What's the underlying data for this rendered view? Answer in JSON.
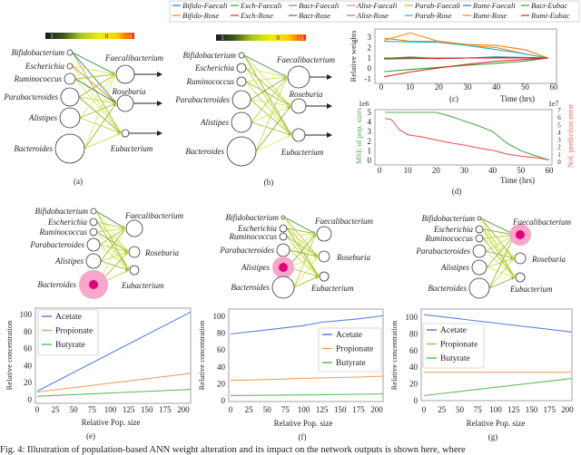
{
  "legend_top": {
    "entries": [
      {
        "label": "Bifido-Faecali",
        "color": "#1f77b4"
      },
      {
        "label": "Bifido-Rose",
        "color": "#ff7f0e"
      },
      {
        "label": "Esch-Faecali",
        "color": "#2ca02c"
      },
      {
        "label": "Esch-Rose",
        "color": "#d62728"
      },
      {
        "label": "Bact-Faecali",
        "color": "#9467bd"
      },
      {
        "label": "Bact-Rose",
        "color": "#8c564b"
      },
      {
        "label": "Alist-Faecali",
        "color": "#e377c2"
      },
      {
        "label": "Alist-Rose",
        "color": "#7f7f7f"
      },
      {
        "label": "Parab-Faecali",
        "color": "#bcbd22"
      },
      {
        "label": "Parab-Rose",
        "color": "#17becf"
      },
      {
        "label": "Rumi-Faecali",
        "color": "#1f77b4"
      },
      {
        "label": "Rumi-Rose",
        "color": "#ff7f0e"
      },
      {
        "label": "Bact-Eubac",
        "color": "#2ca02c"
      },
      {
        "label": "Rumi-Eubac",
        "color": "#d62728"
      }
    ]
  },
  "colorbar": {
    "tick_labels": [
      "1",
      "0",
      "-1"
    ],
    "colors": [
      "#1a1a1a",
      "#3b5a1c",
      "#a8c81e",
      "#e8f000",
      "#ffd000",
      "#ff2a00"
    ]
  },
  "highlight_colors": {
    "core": "#e0007a",
    "halo": "#f8a6c9"
  },
  "networks": [
    {
      "caption": "(a)",
      "inputs": [
        "Bifidobacterium",
        "Escherichia",
        "Ruminococcus",
        "Parabacteroides",
        "Alistipes",
        "Bacteroides"
      ],
      "outputs": [
        "Faecalibacterium",
        "Roseburia",
        "Eubacterium"
      ],
      "has_colorbar": true,
      "output_arrows": true,
      "highlight": null
    },
    {
      "caption": "(b)",
      "inputs": [
        "Bifidobacterium",
        "Escherichia",
        "Ruminococcus",
        "Parabacteroides",
        "Alistipes",
        "Bacteroides"
      ],
      "outputs": [
        "Faecalibacterium",
        "Roseburia",
        "Eubacterium"
      ],
      "has_colorbar": true,
      "output_arrows": true,
      "highlight": null
    },
    {
      "inputs": [
        "Bifidobacterium",
        "Escherichia",
        "Ruminococcus",
        "Parabacteroides",
        "Alistipes",
        "Bacteroides"
      ],
      "outputs": [
        "Faecalibacterium",
        "Roseburia",
        "Eubacterium"
      ],
      "has_colorbar": false,
      "output_arrows": false,
      "highlight": {
        "layer": "input",
        "node": "Bacteroides"
      }
    },
    {
      "inputs": [
        "Bifidobacterium",
        "Escherichia",
        "Ruminococcus",
        "Parabacteroides",
        "Alistipes",
        "Bacteroides"
      ],
      "outputs": [
        "Faecalibacterium",
        "Roseburia",
        "Eubacterium"
      ],
      "has_colorbar": false,
      "output_arrows": false,
      "highlight": {
        "layer": "input",
        "node": "Alistipes"
      }
    },
    {
      "inputs": [
        "Bifidobacterium",
        "Escherichia",
        "Ruminococcus",
        "Parabacteroides",
        "Alistipes",
        "Bacteroides"
      ],
      "outputs": [
        "Faecalibacterium",
        "Roseburia",
        "Eubacterium"
      ],
      "has_colorbar": false,
      "output_arrows": false,
      "highlight": {
        "layer": "output",
        "node": "Faecalibacterium"
      }
    }
  ],
  "chart_data": [
    {
      "type": "line",
      "caption": "(c)",
      "xlabel": "Time (hrs)",
      "ylabel": "Relative weights",
      "xlim": [
        0,
        60
      ],
      "ylim": [
        -1,
        3
      ],
      "xticks": [
        0,
        10,
        20,
        30,
        40,
        50,
        60
      ],
      "yticks": [
        -1,
        0,
        1,
        2,
        3
      ],
      "grid": false,
      "legend": "top (shared legend above panel)",
      "x": [
        1,
        10,
        20,
        30,
        40,
        50,
        58
      ],
      "series": [
        {
          "name": "Bifido-Faecali",
          "values": [
            1.0,
            1.0,
            1.0,
            1.0,
            1.0,
            1.0,
            1.0
          ]
        },
        {
          "name": "Bifido-Rose",
          "values": [
            2.9,
            2.6,
            2.6,
            2.2,
            2.0,
            1.4,
            1.0
          ]
        },
        {
          "name": "Esch-Faecali",
          "values": [
            -0.3,
            -0.1,
            0.1,
            0.3,
            0.5,
            0.7,
            1.0
          ]
        },
        {
          "name": "Esch-Rose",
          "values": [
            -0.8,
            -0.35,
            0.05,
            0.4,
            0.7,
            0.85,
            1.0
          ]
        },
        {
          "name": "Bact-Faecali",
          "values": [
            0.95,
            1.1,
            0.95,
            1.0,
            1.05,
            1.0,
            1.0
          ]
        },
        {
          "name": "Bact-Rose",
          "values": [
            1.0,
            1.0,
            1.0,
            1.0,
            1.0,
            1.0,
            1.0
          ]
        },
        {
          "name": "Alist-Faecali",
          "values": [
            1.0,
            1.0,
            1.0,
            1.0,
            1.0,
            1.05,
            1.0
          ]
        },
        {
          "name": "Alist-Rose",
          "values": [
            1.0,
            1.0,
            1.0,
            1.0,
            1.0,
            1.0,
            1.0
          ]
        },
        {
          "name": "Parab-Faecali",
          "values": [
            0.95,
            1.0,
            1.0,
            1.0,
            1.0,
            1.0,
            1.0
          ]
        },
        {
          "name": "Parab-Rose",
          "values": [
            2.6,
            2.55,
            2.5,
            2.2,
            1.8,
            1.4,
            1.0
          ]
        },
        {
          "name": "Rumi-Faecali",
          "values": [
            0.9,
            0.95,
            0.95,
            1.0,
            1.1,
            1.05,
            1.0
          ]
        },
        {
          "name": "Rumi-Rose",
          "values": [
            2.7,
            3.4,
            2.6,
            2.3,
            2.2,
            1.8,
            1.0
          ]
        },
        {
          "name": "Bact-Eubac",
          "values": [
            0.95,
            0.95,
            1.0,
            1.0,
            1.0,
            1.0,
            1.0
          ]
        },
        {
          "name": "Rumi-Eubac",
          "values": [
            1.0,
            1.0,
            0.95,
            1.0,
            1.0,
            1.0,
            1.0
          ]
        }
      ]
    },
    {
      "type": "line",
      "caption": "(d)",
      "xlabel": "Time (hrs)",
      "ylabel": "MSE of pop. sizes",
      "ylabel_right": "Nol. prediction error",
      "y_offset_label": "1e6",
      "y_right_offset_label": "1e7",
      "xlim": [
        0,
        60
      ],
      "ylim": [
        0,
        5
      ],
      "ylim_right": [
        0,
        7
      ],
      "xticks": [
        0,
        10,
        20,
        30,
        40,
        50,
        60
      ],
      "yticks": [
        0,
        1,
        2,
        3,
        4,
        5
      ],
      "yticks_right": [
        0,
        1,
        2,
        3,
        4,
        5,
        6,
        7
      ],
      "colors": {
        "left": "#4caf50",
        "right": "#e8605a"
      },
      "series": [
        {
          "axis": "left",
          "x": [
            2,
            20,
            25,
            30,
            35,
            40,
            45,
            50,
            55,
            60
          ],
          "values": [
            5,
            5,
            4.6,
            4.1,
            3.6,
            3.0,
            1.8,
            1.0,
            0.5,
            0.05
          ]
        },
        {
          "axis": "right",
          "x": [
            2,
            4,
            5,
            7,
            10,
            15,
            20,
            25,
            30,
            35,
            40,
            45,
            50,
            55,
            60
          ],
          "values": [
            5.8,
            5.7,
            5.3,
            4.3,
            3.6,
            3.3,
            2.9,
            2.5,
            2.2,
            1.8,
            1.5,
            1.0,
            0.7,
            0.5,
            0.2
          ]
        }
      ]
    },
    {
      "type": "line",
      "caption": "(e)",
      "xlabel": "Relative Pop. size",
      "ylabel": "Relative concentration",
      "xlim": [
        0,
        210
      ],
      "ylim": [
        0,
        107
      ],
      "xticks": [
        0,
        25,
        50,
        75,
        100,
        125,
        150,
        175,
        200
      ],
      "yticks": [
        0,
        20,
        40,
        60,
        80,
        100
      ],
      "legend": "top-left",
      "x": [
        0,
        210
      ],
      "series": [
        {
          "name": "Acetate",
          "color": "#5b7fe0",
          "values": [
            10,
            103
          ]
        },
        {
          "name": "Propionate",
          "color": "#f5a060",
          "values": [
            9,
            31
          ]
        },
        {
          "name": "Butyrate",
          "color": "#5cbf5c",
          "values": [
            4,
            12
          ]
        }
      ]
    },
    {
      "type": "line",
      "caption": "(f)",
      "xlabel": "Relative Pop. size",
      "ylabel": "Relative concentration",
      "xlim": [
        0,
        210
      ],
      "ylim": [
        0,
        107
      ],
      "xticks": [
        0,
        25,
        50,
        75,
        100,
        125,
        150,
        175,
        200
      ],
      "yticks": [
        0,
        20,
        40,
        60,
        80,
        100
      ],
      "legend": "right",
      "x": [
        0,
        50,
        100,
        125,
        175,
        210
      ],
      "series": [
        {
          "name": "Acetate",
          "color": "#5b7fe0",
          "values": [
            79,
            84,
            89,
            93,
            97,
            101
          ]
        },
        {
          "name": "Propionate",
          "color": "#f5a060",
          "values": [
            24,
            25,
            26.5,
            27,
            28,
            29
          ]
        },
        {
          "name": "Butyrate",
          "color": "#5cbf5c",
          "values": [
            6,
            6.3,
            6.8,
            7,
            7.5,
            8
          ]
        }
      ]
    },
    {
      "type": "line",
      "caption": "(g)",
      "xlabel": "Relative Pop. size",
      "ylabel": "Relative concentration",
      "xlim": [
        0,
        210
      ],
      "ylim": [
        0,
        107
      ],
      "xticks": [
        0,
        25,
        50,
        75,
        100,
        125,
        150,
        175,
        200
      ],
      "yticks": [
        0,
        20,
        40,
        60,
        80,
        100
      ],
      "legend": "top-left",
      "x": [
        0,
        210
      ],
      "series": [
        {
          "name": "Acetate",
          "color": "#5b7fe0",
          "values": [
            103,
            82
          ]
        },
        {
          "name": "Propionate",
          "color": "#f5a060",
          "values": [
            34,
            34
          ]
        },
        {
          "name": "Butyrate",
          "color": "#5cbf5c",
          "values": [
            6,
            27
          ]
        }
      ]
    }
  ],
  "figure_caption": "Fig. 4: Illustration of population-based ANN weight alteration and its impact on the network outputs is shown here, where"
}
